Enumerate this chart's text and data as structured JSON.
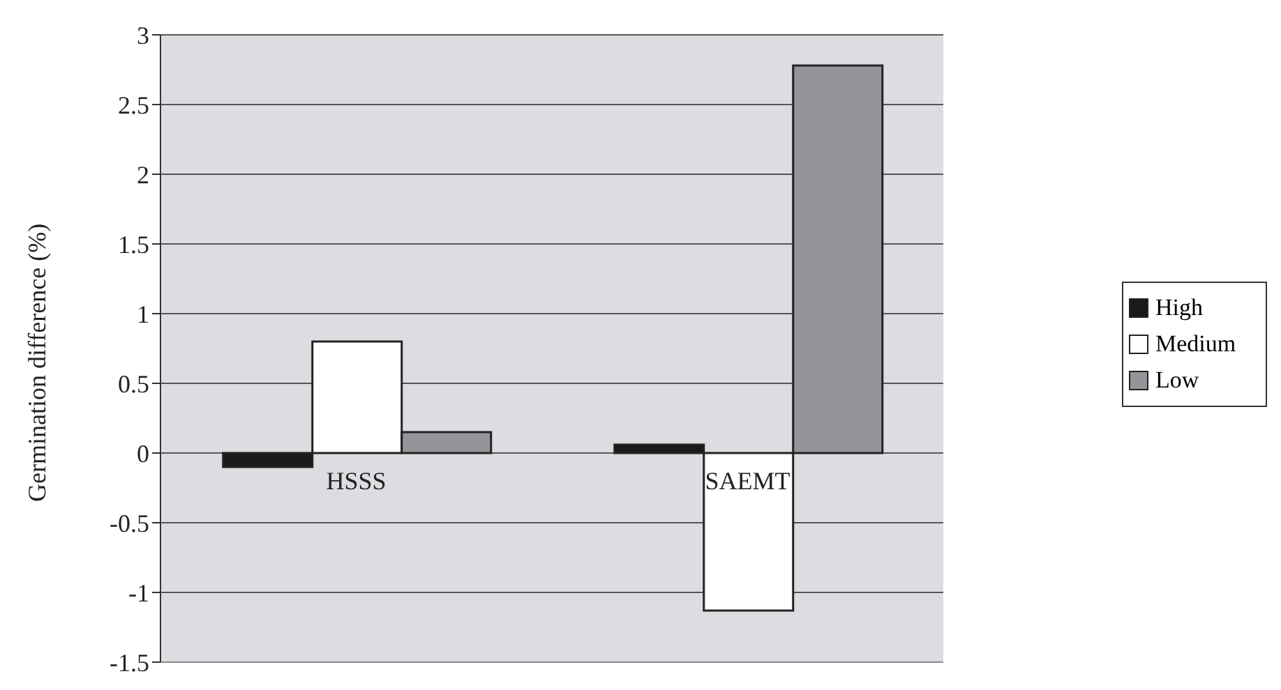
{
  "chart_data": {
    "type": "bar",
    "ylabel": "Germination difference (%)",
    "categories": [
      "HSSS",
      "SAEMT"
    ],
    "series": [
      {
        "name": "High",
        "color": "#1a1a1a",
        "values": [
          -0.1,
          0.06
        ]
      },
      {
        "name": "Medium",
        "color": "#ffffff",
        "values": [
          0.8,
          -1.13
        ]
      },
      {
        "name": "Low",
        "color": "#939598",
        "values": [
          0.15,
          2.78
        ]
      }
    ],
    "ylim": [
      -1.5,
      3
    ],
    "yticks": [
      -1.5,
      -1,
      -0.5,
      0,
      0.5,
      1,
      1.5,
      2,
      2.5,
      3
    ],
    "grid": "y",
    "legend": "right"
  }
}
